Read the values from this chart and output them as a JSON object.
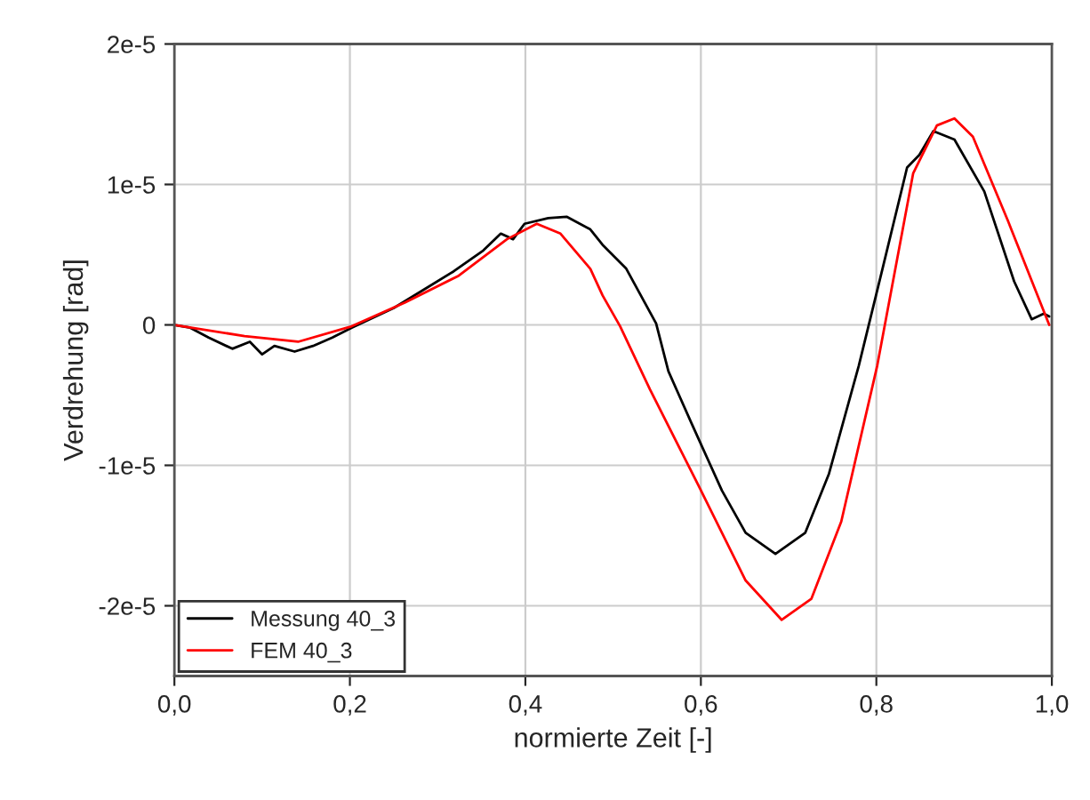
{
  "chart_data": {
    "type": "line",
    "xlabel": "normierte Zeit [-]",
    "ylabel": "Verdrehung [rad]",
    "xlim": [
      0,
      1
    ],
    "ylim": [
      -2.5e-05,
      2e-05
    ],
    "xticks": [
      {
        "value": 0,
        "label": "0,0"
      },
      {
        "value": 0.2,
        "label": "0,2"
      },
      {
        "value": 0.4,
        "label": "0,4"
      },
      {
        "value": 0.6,
        "label": "0,6"
      },
      {
        "value": 0.8,
        "label": "0,8"
      },
      {
        "value": 1,
        "label": "1,0"
      }
    ],
    "yticks": [
      {
        "value": -2e-05,
        "label": "-2e-5"
      },
      {
        "value": -1e-05,
        "label": "-1e-5"
      },
      0,
      {
        "value": 1e-05,
        "label": "1e-5"
      },
      {
        "value": 2e-05,
        "label": "2e-5"
      }
    ],
    "grid": true,
    "legend": "bottom left",
    "marker": "none",
    "line_style": "solid",
    "series": [
      {
        "name": "Messung 40_3",
        "color": "#000000",
        "x": [
          0,
          0.018,
          0.039,
          0.066,
          0.086,
          0.1,
          0.114,
          0.137,
          0.158,
          0.18,
          0.202,
          0.25,
          0.284,
          0.318,
          0.352,
          0.372,
          0.386,
          0.399,
          0.426,
          0.447,
          0.474,
          0.488,
          0.515,
          0.549,
          0.563,
          0.59,
          0.624,
          0.651,
          0.685,
          0.719,
          0.746,
          0.78,
          0.807,
          0.835,
          0.849,
          0.865,
          0.889,
          0.923,
          0.957,
          0.977,
          0.991,
          0.997
        ],
        "values": [
          0,
          -2e-07,
          -9e-07,
          -1.7e-06,
          -1.2e-06,
          -2.1e-06,
          -1.5e-06,
          -1.9e-06,
          -1.5e-06,
          -9e-07,
          -2e-07,
          1.2e-06,
          2.5e-06,
          3.8e-06,
          5.3e-06,
          6.5e-06,
          6.1e-06,
          7.2e-06,
          7.6e-06,
          7.7e-06,
          6.8e-06,
          5.7e-06,
          4e-06,
          1e-07,
          -3.3e-06,
          -7.1e-06,
          -1.18e-05,
          -1.48e-05,
          -1.63e-05,
          -1.48e-05,
          -1.06e-05,
          -2.9e-06,
          4e-06,
          1.12e-05,
          1.21e-05,
          1.38e-05,
          1.32e-05,
          9.5e-06,
          3.1e-06,
          4e-07,
          8e-07,
          6e-07
        ]
      },
      {
        "name": "FEM 40_3",
        "color": "#ff0000",
        "x": [
          0,
          0.08,
          0.141,
          0.202,
          0.263,
          0.324,
          0.379,
          0.413,
          0.44,
          0.474,
          0.488,
          0.508,
          0.542,
          0.597,
          0.651,
          0.692,
          0.726,
          0.76,
          0.801,
          0.842,
          0.869,
          0.889,
          0.91,
          0.95,
          0.997
        ],
        "values": [
          0,
          -8e-07,
          -1.2e-06,
          -1e-07,
          1.6e-06,
          3.5e-06,
          6.1e-06,
          7.2e-06,
          6.5e-06,
          4e-06,
          2.1e-06,
          -1e-07,
          -4.6e-06,
          -1.14e-05,
          -1.82e-05,
          -2.1e-05,
          -1.95e-05,
          -1.4e-05,
          -2.9e-06,
          1.08e-05,
          1.42e-05,
          1.47e-05,
          1.34e-05,
          7.4e-06,
          0
        ]
      }
    ]
  }
}
